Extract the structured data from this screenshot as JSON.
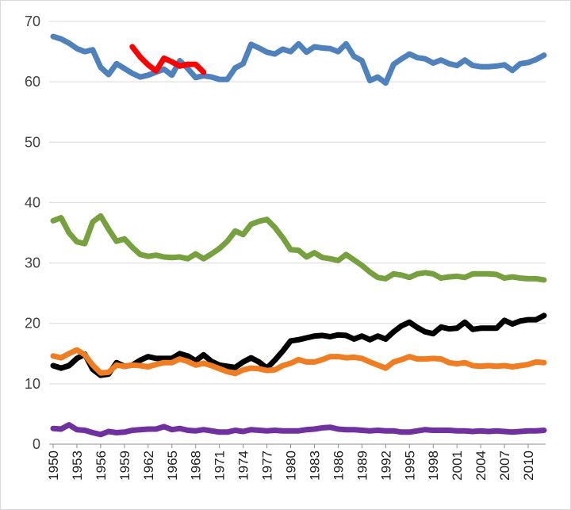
{
  "chart_data": {
    "type": "line",
    "title": "",
    "xlabel": "",
    "ylabel": "",
    "ylim": [
      0,
      70
    ],
    "yticks": [
      0,
      10,
      20,
      30,
      40,
      50,
      60,
      70
    ],
    "xlim": [
      1950,
      2012
    ],
    "xticks": [
      "1950",
      "1953",
      "1956",
      "1959",
      "1962",
      "1965",
      "1968",
      "1971",
      "1974",
      "1977",
      "1980",
      "1983",
      "1986",
      "1989",
      "1992",
      "1995",
      "1998",
      "2001",
      "2004",
      "2007",
      "2010"
    ],
    "grid": true,
    "legend": "none",
    "series": [
      {
        "color": "#4f81bd",
        "x": [
          1950,
          1951,
          1952,
          1953,
          1954,
          1955,
          1956,
          1957,
          1958,
          1959,
          1960,
          1961,
          1962,
          1963,
          1964,
          1965,
          1966,
          1967,
          1968,
          1969,
          1970,
          1971,
          1972,
          1973,
          1974,
          1975,
          1976,
          1977,
          1978,
          1979,
          1980,
          1981,
          1982,
          1983,
          1984,
          1985,
          1986,
          1987,
          1988,
          1989,
          1990,
          1991,
          1992,
          1993,
          1994,
          1995,
          1996,
          1997,
          1998,
          1999,
          2000,
          2001,
          2002,
          2003,
          2004,
          2005,
          2006,
          2007,
          2008,
          2009,
          2010,
          2011,
          2012
        ],
        "values": [
          67.5,
          67.1,
          66.4,
          65.5,
          65.0,
          65.3,
          62.4,
          61.2,
          63.0,
          62.2,
          61.4,
          60.8,
          61.1,
          61.6,
          62.1,
          61.1,
          63.5,
          62.2,
          60.7,
          61.0,
          60.8,
          60.4,
          60.4,
          62.3,
          63.0,
          66.2,
          65.6,
          64.9,
          64.6,
          65.4,
          65.0,
          66.3,
          64.9,
          65.8,
          65.6,
          65.5,
          65.0,
          66.3,
          64.2,
          63.5,
          60.2,
          60.8,
          59.8,
          62.9,
          63.8,
          64.6,
          64.0,
          63.8,
          63.1,
          63.6,
          63.0,
          62.7,
          63.6,
          62.7,
          62.5,
          62.5,
          62.6,
          62.8,
          61.9,
          63.0,
          63.2,
          63.7,
          64.4
        ]
      },
      {
        "color": "#ff0000",
        "x": [
          1960,
          1961,
          1962,
          1963,
          1964,
          1965,
          1966,
          1967,
          1968,
          1969
        ],
        "values": [
          65.8,
          64.1,
          62.8,
          61.8,
          63.9,
          63.3,
          62.6,
          62.9,
          62.9,
          61.6
        ]
      },
      {
        "color": "#77a03f",
        "x": [
          1950,
          1951,
          1952,
          1953,
          1954,
          1955,
          1956,
          1957,
          1958,
          1959,
          1960,
          1961,
          1962,
          1963,
          1964,
          1965,
          1966,
          1967,
          1968,
          1969,
          1970,
          1971,
          1972,
          1973,
          1974,
          1975,
          1976,
          1977,
          1978,
          1979,
          1980,
          1981,
          1982,
          1983,
          1984,
          1985,
          1986,
          1987,
          1988,
          1989,
          1990,
          1991,
          1992,
          1993,
          1994,
          1995,
          1996,
          1997,
          1998,
          1999,
          2000,
          2001,
          2002,
          2003,
          2004,
          2005,
          2006,
          2007,
          2008,
          2009,
          2010,
          2011,
          2012
        ],
        "values": [
          37.0,
          37.5,
          35.0,
          33.5,
          33.2,
          36.8,
          37.8,
          35.6,
          33.6,
          34.0,
          32.6,
          31.4,
          31.1,
          31.3,
          31.0,
          30.9,
          31.0,
          30.7,
          31.5,
          30.7,
          31.5,
          32.4,
          33.6,
          35.3,
          34.7,
          36.4,
          36.9,
          37.2,
          35.9,
          34.2,
          32.2,
          32.1,
          31.0,
          31.7,
          30.9,
          30.7,
          30.4,
          31.4,
          30.5,
          29.6,
          28.5,
          27.6,
          27.4,
          28.2,
          28.0,
          27.6,
          28.2,
          28.4,
          28.2,
          27.5,
          27.7,
          27.8,
          27.6,
          28.2,
          28.2,
          28.2,
          28.1,
          27.5,
          27.7,
          27.5,
          27.4,
          27.4,
          27.2
        ]
      },
      {
        "color": "#000000",
        "x": [
          1950,
          1951,
          1952,
          1953,
          1954,
          1955,
          1956,
          1957,
          1958,
          1959,
          1960,
          1961,
          1962,
          1963,
          1964,
          1965,
          1966,
          1967,
          1968,
          1969,
          1970,
          1971,
          1972,
          1973,
          1974,
          1975,
          1976,
          1977,
          1978,
          1979,
          1980,
          1981,
          1982,
          1983,
          1984,
          1985,
          1986,
          1987,
          1988,
          1989,
          1990,
          1991,
          1992,
          1993,
          1994,
          1995,
          1996,
          1997,
          1998,
          1999,
          2000,
          2001,
          2002,
          2003,
          2004,
          2005,
          2006,
          2007,
          2008,
          2009,
          2010,
          2011,
          2012
        ],
        "values": [
          13.0,
          12.6,
          13.0,
          14.2,
          14.9,
          12.4,
          11.4,
          11.6,
          13.5,
          12.9,
          13.1,
          13.9,
          14.5,
          14.2,
          14.2,
          14.2,
          15.0,
          14.6,
          13.8,
          14.8,
          13.7,
          13.1,
          12.9,
          12.7,
          13.6,
          14.3,
          13.6,
          12.6,
          13.9,
          15.4,
          17.1,
          17.3,
          17.6,
          17.9,
          18.0,
          17.8,
          18.1,
          18.0,
          17.4,
          17.9,
          17.3,
          17.9,
          17.4,
          18.6,
          19.6,
          20.2,
          19.3,
          18.6,
          18.3,
          19.4,
          19.1,
          19.2,
          20.2,
          19.0,
          19.2,
          19.2,
          19.2,
          20.5,
          19.9,
          20.4,
          20.6,
          20.6,
          21.3
        ]
      },
      {
        "color": "#f07d21",
        "x": [
          1950,
          1951,
          1952,
          1953,
          1954,
          1955,
          1956,
          1957,
          1958,
          1959,
          1960,
          1961,
          1962,
          1963,
          1964,
          1965,
          1966,
          1967,
          1968,
          1969,
          1970,
          1971,
          1972,
          1973,
          1974,
          1975,
          1976,
          1977,
          1978,
          1979,
          1980,
          1981,
          1982,
          1983,
          1984,
          1985,
          1986,
          1987,
          1988,
          1989,
          1990,
          1991,
          1992,
          1993,
          1994,
          1995,
          1996,
          1997,
          1998,
          1999,
          2000,
          2001,
          2002,
          2003,
          2004,
          2005,
          2006,
          2007,
          2008,
          2009,
          2010,
          2011,
          2012
        ],
        "values": [
          14.6,
          14.3,
          15.0,
          15.6,
          14.8,
          13.1,
          11.8,
          11.9,
          13.1,
          12.9,
          13.1,
          13.0,
          12.8,
          13.2,
          13.5,
          13.5,
          14.1,
          13.7,
          13.1,
          13.4,
          13.0,
          12.5,
          12.0,
          11.7,
          12.3,
          12.6,
          12.5,
          12.2,
          12.3,
          13.0,
          13.4,
          14.0,
          13.6,
          13.6,
          14.0,
          14.5,
          14.5,
          14.3,
          14.4,
          14.2,
          13.6,
          13.1,
          12.6,
          13.6,
          14.0,
          14.5,
          14.1,
          14.1,
          14.2,
          14.1,
          13.5,
          13.3,
          13.5,
          13.0,
          12.9,
          13.0,
          12.9,
          13.0,
          12.8,
          13.0,
          13.2,
          13.6,
          13.5
        ]
      },
      {
        "color": "#7030a0",
        "x": [
          1950,
          1951,
          1952,
          1953,
          1954,
          1955,
          1956,
          1957,
          1958,
          1959,
          1960,
          1961,
          1962,
          1963,
          1964,
          1965,
          1966,
          1967,
          1968,
          1969,
          1970,
          1971,
          1972,
          1973,
          1974,
          1975,
          1976,
          1977,
          1978,
          1979,
          1980,
          1981,
          1982,
          1983,
          1984,
          1985,
          1986,
          1987,
          1988,
          1989,
          1990,
          1991,
          1992,
          1993,
          1994,
          1995,
          1996,
          1997,
          1998,
          1999,
          2000,
          2001,
          2002,
          2003,
          2004,
          2005,
          2006,
          2007,
          2008,
          2009,
          2010,
          2011,
          2012
        ],
        "values": [
          2.6,
          2.5,
          3.2,
          2.4,
          2.3,
          1.9,
          1.6,
          2.1,
          1.9,
          2.0,
          2.3,
          2.4,
          2.5,
          2.5,
          2.9,
          2.4,
          2.6,
          2.3,
          2.2,
          2.4,
          2.2,
          2.0,
          2.0,
          2.3,
          2.1,
          2.4,
          2.3,
          2.2,
          2.3,
          2.2,
          2.2,
          2.2,
          2.4,
          2.5,
          2.7,
          2.8,
          2.5,
          2.4,
          2.4,
          2.3,
          2.2,
          2.3,
          2.2,
          2.2,
          2.0,
          2.0,
          2.2,
          2.4,
          2.3,
          2.3,
          2.3,
          2.2,
          2.2,
          2.1,
          2.2,
          2.1,
          2.2,
          2.1,
          2.0,
          2.1,
          2.2,
          2.2,
          2.3
        ]
      }
    ]
  }
}
